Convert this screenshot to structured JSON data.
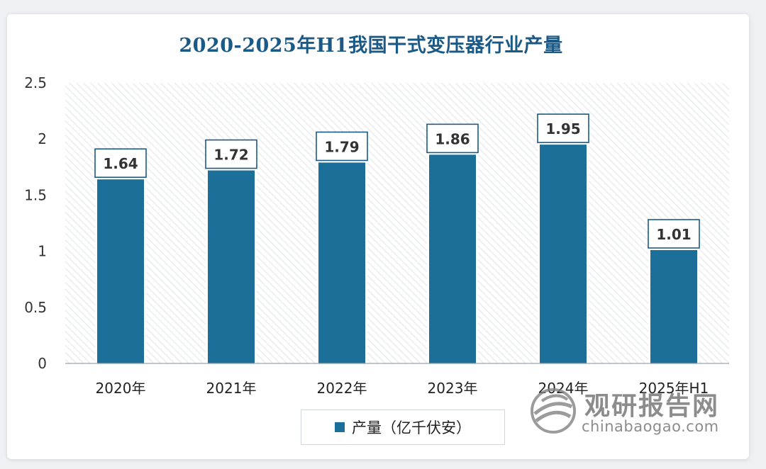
{
  "chart_data": {
    "type": "bar",
    "title": "2020-2025年H1我国干式变压器行业产量",
    "categories": [
      "2020年",
      "2021年",
      "2022年",
      "2023年",
      "2024年",
      "2025年H1"
    ],
    "series": [
      {
        "name": "产量（亿千伏安）",
        "values": [
          1.64,
          1.72,
          1.79,
          1.86,
          1.95,
          1.01
        ]
      }
    ],
    "data_labels": [
      "1.64",
      "1.72",
      "1.79",
      "1.86",
      "1.95",
      "1.01"
    ],
    "ylim": [
      0,
      2.5
    ],
    "yticks": [
      0,
      0.5,
      1,
      1.5,
      2,
      2.5
    ],
    "ytick_labels": [
      "0",
      "0.5",
      "1",
      "1.5",
      "2",
      "2.5"
    ],
    "grid": false,
    "legend_position": "bottom",
    "colors": {
      "bar": "#1b6f98",
      "title": "#1b5a86",
      "plot_hatch": "#d9dde2"
    }
  },
  "watermark": {
    "brand_cn": "观研报告网",
    "brand_en": "chinabaogao.com",
    "icon": "globe-swirl-logo-icon"
  }
}
